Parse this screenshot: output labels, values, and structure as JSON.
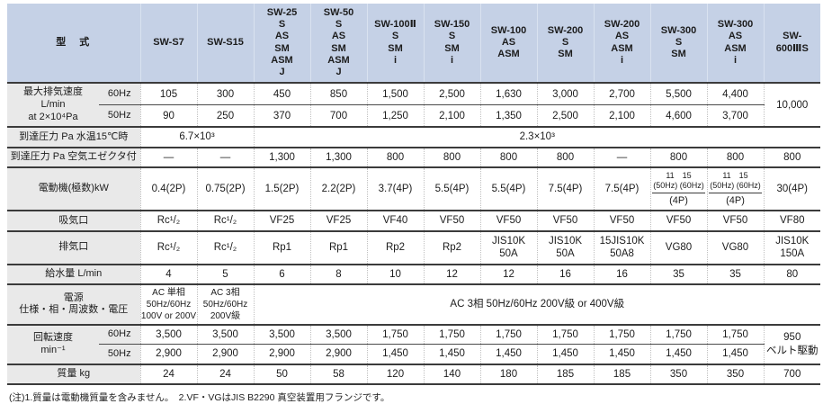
{
  "colors": {
    "header_bg": "#c5d1e6",
    "label_bg": "#e9e9e9",
    "border_dark": "#3b3b3b",
    "divider_dotted": "#c0c0c0",
    "text": "#1c1c1c"
  },
  "footnote": "(注)1.質量は電動機質量を含みません。　2.VF・VGはJIS B2290 真空装置用フランジです。",
  "chart_data": {
    "type": "table",
    "model_label": "型　式",
    "columns": [
      "SW-S7",
      "SW-S15",
      "SW-25\nS\nAS\nSM\nASM\nJ",
      "SW-50\nS\nAS\nSM\nASM\nJ",
      "SW-100Ⅱ\nS\nSM\ni",
      "SW-150\nS\nSM\ni",
      "SW-100\nAS\nASM",
      "SW-200\nS\nSM",
      "SW-200\nAS\nASM\ni",
      "SW-300\nS\nSM",
      "SW-300\nAS\nASM\ni",
      "SW-\n600ⅢS"
    ],
    "rows": [
      {
        "label": "最大排気速度\nL/min\nat 2×10⁴Pa",
        "labelRs": 2,
        "sub": "60Hz",
        "thin": false,
        "cells": [
          {
            "v": "105"
          },
          {
            "v": "300"
          },
          {
            "v": "450"
          },
          {
            "v": "850"
          },
          {
            "v": "1,500"
          },
          {
            "v": "2,500"
          },
          {
            "v": "1,630"
          },
          {
            "v": "3,000"
          },
          {
            "v": "2,700"
          },
          {
            "v": "5,500"
          },
          {
            "v": "4,400"
          },
          {
            "v": "10,000",
            "rs": 2
          }
        ]
      },
      {
        "sub": "50Hz",
        "thin": true,
        "cells": [
          {
            "v": "90"
          },
          {
            "v": "250"
          },
          {
            "v": "370"
          },
          {
            "v": "700"
          },
          {
            "v": "1,250"
          },
          {
            "v": "2,100"
          },
          {
            "v": "1,350"
          },
          {
            "v": "2,500"
          },
          {
            "v": "2,100"
          },
          {
            "v": "4,600"
          },
          {
            "v": "3,700"
          }
        ]
      },
      {
        "label": "到達圧力 Pa 水温15℃時",
        "labelCs": 2,
        "thin": false,
        "cells": [
          {
            "v": "6.7×10³",
            "cs": 2
          },
          {
            "v": "2.3×10³",
            "cs": 10
          }
        ]
      },
      {
        "label": "到達圧力 Pa 空気エゼクタ付",
        "labelCs": 2,
        "thin": false,
        "cells": [
          {
            "v": "—"
          },
          {
            "v": "—"
          },
          {
            "v": "1,300"
          },
          {
            "v": "1,300"
          },
          {
            "v": "800"
          },
          {
            "v": "800"
          },
          {
            "v": "800"
          },
          {
            "v": "800"
          },
          {
            "v": "—"
          },
          {
            "v": "800"
          },
          {
            "v": "800"
          },
          {
            "v": "800"
          }
        ]
      },
      {
        "label": "電動機(極数)kW",
        "labelCs": 2,
        "thin": false,
        "cells": [
          {
            "v": "0.4(2P)"
          },
          {
            "v": "0.75(2P)"
          },
          {
            "v": "1.5(2P)"
          },
          {
            "v": "2.2(2P)"
          },
          {
            "v": "3.7(4P)"
          },
          {
            "v": "5.5(4P)"
          },
          {
            "v": "5.5(4P)"
          },
          {
            "v": "7.5(4P)"
          },
          {
            "v": "7.5(4P)"
          },
          {
            "top": "11　15\n(50Hz) (60Hz)",
            "bottom": "(4P)"
          },
          {
            "top": "11　15\n(50Hz) (60Hz)",
            "bottom": "(4P)"
          },
          {
            "v": "30(4P)"
          }
        ]
      },
      {
        "label": "吸気口",
        "labelCs": 2,
        "thin": false,
        "cells": [
          {
            "v": "Rc¹/₂"
          },
          {
            "v": "Rc¹/₂"
          },
          {
            "v": "VF25"
          },
          {
            "v": "VF25"
          },
          {
            "v": "VF40"
          },
          {
            "v": "VF50"
          },
          {
            "v": "VF50"
          },
          {
            "v": "VF50"
          },
          {
            "v": "VF50"
          },
          {
            "v": "VF50"
          },
          {
            "v": "VF50"
          },
          {
            "v": "VF80"
          }
        ]
      },
      {
        "label": "排気口",
        "labelCs": 2,
        "thin": false,
        "cells": [
          {
            "v": "Rc¹/₂"
          },
          {
            "v": "Rc¹/₂"
          },
          {
            "v": "Rp1"
          },
          {
            "v": "Rp1"
          },
          {
            "v": "Rp2"
          },
          {
            "v": "Rp2"
          },
          {
            "v": "JIS10K\n50A"
          },
          {
            "v": "JIS10K\n50A"
          },
          {
            "v": "15JIS10K\n50A8"
          },
          {
            "v": "VG80"
          },
          {
            "v": "VG80"
          },
          {
            "v": "JIS10K\n150A"
          }
        ]
      },
      {
        "label": "給水量 L/min",
        "labelCs": 2,
        "thin": false,
        "cells": [
          {
            "v": "4"
          },
          {
            "v": "5"
          },
          {
            "v": "6"
          },
          {
            "v": "8"
          },
          {
            "v": "10"
          },
          {
            "v": "12"
          },
          {
            "v": "12"
          },
          {
            "v": "16"
          },
          {
            "v": "16"
          },
          {
            "v": "35"
          },
          {
            "v": "35"
          },
          {
            "v": "80"
          }
        ]
      },
      {
        "label": "電源\n仕様・相・周波数・電圧",
        "labelCs": 2,
        "thin": false,
        "power": true,
        "cells": [
          {
            "v": "AC 単相\n50Hz/60Hz\n100V or 200V"
          },
          {
            "v": "AC 3相\n50Hz/60Hz\n200V級"
          },
          {
            "v": "AC 3相 50Hz/60Hz 200V級 or 400V級",
            "cs": 10,
            "big": true
          }
        ]
      },
      {
        "label": "回転速度\nmin⁻¹",
        "labelRs": 2,
        "sub": "60Hz",
        "thin": false,
        "cells": [
          {
            "v": "3,500"
          },
          {
            "v": "3,500"
          },
          {
            "v": "3,500"
          },
          {
            "v": "3,500"
          },
          {
            "v": "1,750"
          },
          {
            "v": "1,750"
          },
          {
            "v": "1,750"
          },
          {
            "v": "1,750"
          },
          {
            "v": "1,750"
          },
          {
            "v": "1,750"
          },
          {
            "v": "1,750"
          },
          {
            "v": "950\nベルト駆動",
            "rs": 2
          }
        ]
      },
      {
        "sub": "50Hz",
        "thin": true,
        "cells": [
          {
            "v": "2,900"
          },
          {
            "v": "2,900"
          },
          {
            "v": "2,900"
          },
          {
            "v": "2,900"
          },
          {
            "v": "1,450"
          },
          {
            "v": "1,450"
          },
          {
            "v": "1,450"
          },
          {
            "v": "1,450"
          },
          {
            "v": "1,450"
          },
          {
            "v": "1,450"
          },
          {
            "v": "1,450"
          }
        ]
      },
      {
        "label": "質量 kg",
        "labelCs": 2,
        "thin": false,
        "cells": [
          {
            "v": "24"
          },
          {
            "v": "24"
          },
          {
            "v": "50"
          },
          {
            "v": "58"
          },
          {
            "v": "120"
          },
          {
            "v": "140"
          },
          {
            "v": "180"
          },
          {
            "v": "185"
          },
          {
            "v": "185"
          },
          {
            "v": "350"
          },
          {
            "v": "350"
          },
          {
            "v": "700"
          }
        ]
      }
    ]
  }
}
